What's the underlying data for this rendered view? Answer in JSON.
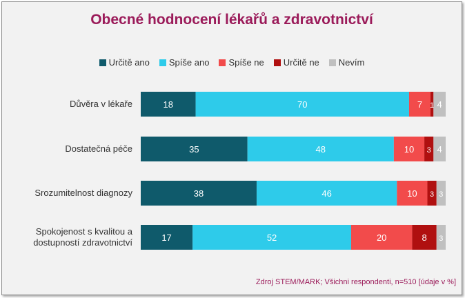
{
  "title": "Obecné hodnocení lékařů a zdravotnictví",
  "source": "Zdroj STEM/MARK; Všichni respondenti, n=510 [údaje v %]",
  "chart_data": {
    "type": "bar",
    "orientation": "horizontal",
    "stacked": true,
    "legend_position": "top",
    "categories": [
      [
        "Důvěra v lékaře"
      ],
      [
        "Dostatečná péče"
      ],
      [
        "Srozumitelnost diagnozy"
      ],
      [
        "Spokojenost s kvalitou a",
        "dostupností zdravotnictví"
      ]
    ],
    "series": [
      {
        "name": "Určitě ano",
        "color": "#0f5a6b",
        "values": [
          18,
          35,
          38,
          17
        ]
      },
      {
        "name": "Spíše ano",
        "color": "#2ecbea",
        "values": [
          70,
          48,
          46,
          52
        ]
      },
      {
        "name": "Spíše ne",
        "color": "#f24b4b",
        "values": [
          7,
          10,
          10,
          20
        ]
      },
      {
        "name": "Určitě ne",
        "color": "#b01010",
        "values": [
          1,
          3,
          3,
          8
        ]
      },
      {
        "name": "Nevím",
        "color": "#c0c0c0",
        "values": [
          4,
          4,
          3,
          3
        ]
      }
    ]
  }
}
